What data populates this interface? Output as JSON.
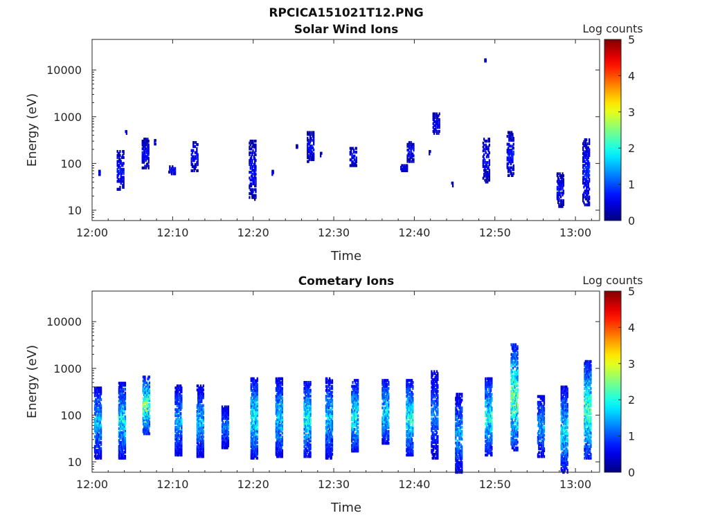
{
  "figure_title": "RPCICA151021T12.PNG",
  "chart_data": [
    {
      "type": "heatmap",
      "title": "Solar Wind Ions",
      "xlabel": "Time",
      "ylabel": "Energy (eV)",
      "x_ticks": [
        "12:00",
        "12:10",
        "12:20",
        "12:30",
        "12:40",
        "12:50",
        "13:00"
      ],
      "x_tick_minutes": [
        0,
        10,
        20,
        30,
        40,
        50,
        60
      ],
      "xlim_minutes": [
        0,
        63
      ],
      "y_scale": "log",
      "y_ticks": [
        "10",
        "100",
        "1000",
        "10000"
      ],
      "y_tick_values": [
        10,
        100,
        1000,
        10000
      ],
      "ylim": [
        6,
        45000
      ],
      "colorbar": {
        "label": "Log counts",
        "ticks": [
          "0",
          "1",
          "2",
          "3",
          "4",
          "5"
        ],
        "range": [
          0,
          5
        ],
        "colormap": "jet"
      },
      "clusters": [
        {
          "t": 1.0,
          "emin": 58,
          "emax": 68,
          "level": 0.6,
          "density": 0.9
        },
        {
          "t": 3.6,
          "emin": 28,
          "emax": 180,
          "level": 0.6,
          "density": 0.55
        },
        {
          "t": 4.3,
          "emin": 440,
          "emax": 480,
          "level": 0.5,
          "density": 0.9
        },
        {
          "t": 6.7,
          "emin": 80,
          "emax": 330,
          "level": 0.55,
          "density": 0.6
        },
        {
          "t": 7.9,
          "emin": 260,
          "emax": 310,
          "level": 0.5,
          "density": 0.9
        },
        {
          "t": 10.0,
          "emin": 60,
          "emax": 85,
          "level": 0.5,
          "density": 0.6
        },
        {
          "t": 12.8,
          "emin": 70,
          "emax": 280,
          "level": 0.55,
          "density": 0.5
        },
        {
          "t": 20.0,
          "emin": 17,
          "emax": 300,
          "level": 0.55,
          "density": 0.45
        },
        {
          "t": 22.5,
          "emin": 58,
          "emax": 68,
          "level": 0.5,
          "density": 0.9
        },
        {
          "t": 25.5,
          "emin": 220,
          "emax": 240,
          "level": 0.5,
          "density": 0.9
        },
        {
          "t": 27.2,
          "emin": 110,
          "emax": 460,
          "level": 0.55,
          "density": 0.5
        },
        {
          "t": 28.5,
          "emin": 145,
          "emax": 165,
          "level": 0.5,
          "density": 0.9
        },
        {
          "t": 32.5,
          "emin": 90,
          "emax": 210,
          "level": 0.55,
          "density": 0.55
        },
        {
          "t": 38.8,
          "emin": 70,
          "emax": 90,
          "level": 0.5,
          "density": 0.8
        },
        {
          "t": 39.6,
          "emin": 110,
          "emax": 280,
          "level": 0.55,
          "density": 0.55
        },
        {
          "t": 42.0,
          "emin": 160,
          "emax": 180,
          "level": 0.5,
          "density": 0.9
        },
        {
          "t": 42.8,
          "emin": 440,
          "emax": 1150,
          "level": 0.55,
          "density": 0.6
        },
        {
          "t": 44.8,
          "emin": 33,
          "emax": 38,
          "level": 0.5,
          "density": 0.9
        },
        {
          "t": 49.0,
          "emin": 40,
          "emax": 330,
          "level": 0.55,
          "density": 0.45
        },
        {
          "t": 48.9,
          "emin": 15500,
          "emax": 16500,
          "level": 0.5,
          "density": 1.0
        },
        {
          "t": 52.0,
          "emin": 55,
          "emax": 460,
          "level": 0.65,
          "density": 0.55
        },
        {
          "t": 58.2,
          "emin": 12,
          "emax": 60,
          "level": 0.6,
          "density": 0.55
        },
        {
          "t": 61.4,
          "emin": 13,
          "emax": 320,
          "level": 0.7,
          "density": 0.6
        }
      ]
    },
    {
      "type": "heatmap",
      "title": "Cometary Ions",
      "xlabel": "Time",
      "ylabel": "Energy (eV)",
      "x_ticks": [
        "12:00",
        "12:10",
        "12:20",
        "12:30",
        "12:40",
        "12:50",
        "13:00"
      ],
      "x_tick_minutes": [
        0,
        10,
        20,
        30,
        40,
        50,
        60
      ],
      "xlim_minutes": [
        0,
        63
      ],
      "y_scale": "log",
      "y_ticks": [
        "10",
        "100",
        "1000",
        "10000"
      ],
      "y_tick_values": [
        10,
        100,
        1000,
        10000
      ],
      "ylim": [
        6,
        45000
      ],
      "colorbar": {
        "label": "Log counts",
        "ticks": [
          "0",
          "1",
          "2",
          "3",
          "4",
          "5"
        ],
        "range": [
          0,
          5
        ],
        "colormap": "jet"
      },
      "clusters": [
        {
          "t": 0.8,
          "emin": 12,
          "emax": 380,
          "level": 1.3,
          "density": 0.75
        },
        {
          "t": 3.8,
          "emin": 12,
          "emax": 480,
          "level": 1.5,
          "density": 0.75
        },
        {
          "t": 6.8,
          "emin": 40,
          "emax": 650,
          "level": 2.0,
          "density": 0.7
        },
        {
          "t": 10.8,
          "emin": 14,
          "emax": 420,
          "level": 1.2,
          "density": 0.7
        },
        {
          "t": 13.5,
          "emin": 13,
          "emax": 420,
          "level": 1.3,
          "density": 0.75
        },
        {
          "t": 16.6,
          "emin": 20,
          "emax": 150,
          "level": 1.1,
          "density": 0.8
        },
        {
          "t": 20.2,
          "emin": 12,
          "emax": 600,
          "level": 1.6,
          "density": 0.75
        },
        {
          "t": 23.3,
          "emin": 13,
          "emax": 600,
          "level": 1.4,
          "density": 0.75
        },
        {
          "t": 26.8,
          "emin": 13,
          "emax": 500,
          "level": 1.6,
          "density": 0.75
        },
        {
          "t": 29.5,
          "emin": 12,
          "emax": 600,
          "level": 1.3,
          "density": 0.7
        },
        {
          "t": 32.7,
          "emin": 17,
          "emax": 550,
          "level": 1.6,
          "density": 0.75
        },
        {
          "t": 36.5,
          "emin": 25,
          "emax": 550,
          "level": 1.5,
          "density": 0.75
        },
        {
          "t": 39.5,
          "emin": 14,
          "emax": 550,
          "level": 1.6,
          "density": 0.75
        },
        {
          "t": 42.6,
          "emin": 12,
          "emax": 850,
          "level": 1.0,
          "density": 0.6
        },
        {
          "t": 45.6,
          "emin": 6,
          "emax": 280,
          "level": 1.2,
          "density": 0.7
        },
        {
          "t": 49.3,
          "emin": 14,
          "emax": 600,
          "level": 1.6,
          "density": 0.75
        },
        {
          "t": 52.5,
          "emin": 18,
          "emax": 3200,
          "level": 2.0,
          "density": 0.7
        },
        {
          "t": 55.8,
          "emin": 13,
          "emax": 250,
          "level": 1.2,
          "density": 0.65
        },
        {
          "t": 58.7,
          "emin": 6,
          "emax": 400,
          "level": 1.5,
          "density": 0.7
        },
        {
          "t": 61.6,
          "emin": 12,
          "emax": 1400,
          "level": 1.9,
          "density": 0.75
        }
      ]
    }
  ]
}
